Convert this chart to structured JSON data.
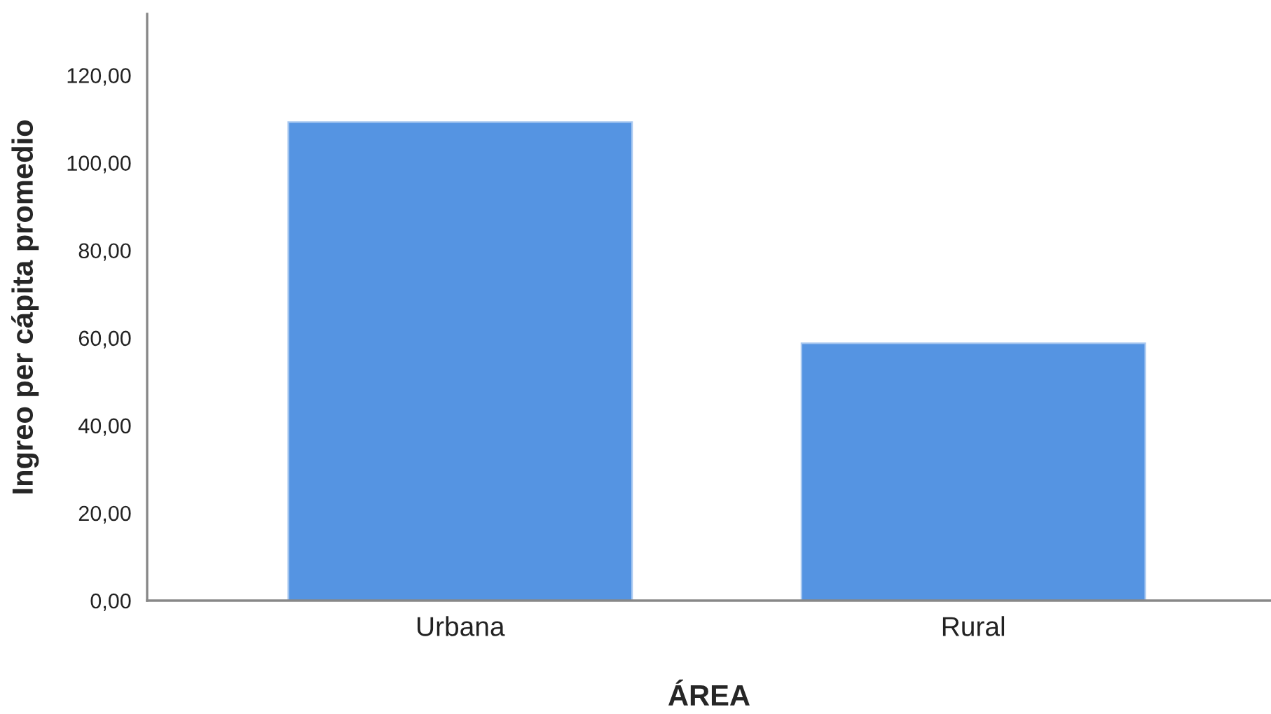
{
  "chart_data": {
    "type": "bar",
    "xlabel": "ÁREA",
    "ylabel": "Ingreo per cápita promedio",
    "categories": [
      "Urbana",
      "Rural"
    ],
    "values": [
      109.3,
      58.8
    ],
    "color": "#5594e2",
    "ylim": [
      0,
      134
    ],
    "yticks": [
      {
        "value": 0,
        "label": "0,00"
      },
      {
        "value": 20,
        "label": "20,00"
      },
      {
        "value": 40,
        "label": "40,00"
      },
      {
        "value": 60,
        "label": "60,00"
      },
      {
        "value": 80,
        "label": "80,00"
      },
      {
        "value": 100,
        "label": "100,00"
      },
      {
        "value": 120,
        "label": "120,00"
      }
    ],
    "grid": false,
    "legend": false
  }
}
